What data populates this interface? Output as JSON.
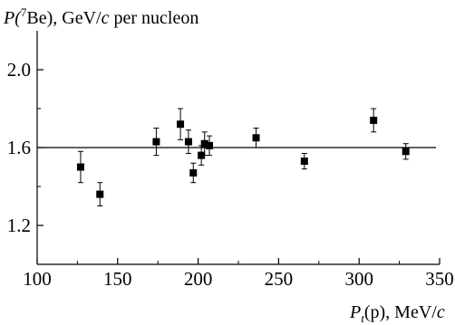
{
  "chart_data": {
    "type": "scatter",
    "ylabel": {
      "prefix": "P(",
      "superscript": "7",
      "element": "Be), GeV/",
      "unit_italic": "c",
      "suffix": " per nucleon"
    },
    "xlabel": {
      "main": "P",
      "subscript": "t",
      "paren": "(p), MeV/",
      "unit_italic": "c"
    },
    "xlim": [
      100,
      350
    ],
    "ylim": [
      1.0,
      2.2
    ],
    "x_ticks": [
      100,
      150,
      200,
      250,
      300,
      350
    ],
    "y_ticks": [
      1.2,
      1.6,
      2.0
    ],
    "x_tick_labels": [
      "100",
      "150",
      "200",
      "250",
      "300",
      "350"
    ],
    "y_tick_labels": [
      "1.2",
      "1.6",
      "2.0"
    ],
    "fit_line_y": 1.6,
    "marker": "filled-square",
    "points": [
      {
        "x": 127,
        "y": 1.5,
        "yerr": 0.08
      },
      {
        "x": 139,
        "y": 1.36,
        "yerr": 0.06
      },
      {
        "x": 174,
        "y": 1.63,
        "yerr": 0.07
      },
      {
        "x": 189,
        "y": 1.72,
        "yerr": 0.08
      },
      {
        "x": 194,
        "y": 1.63,
        "yerr": 0.06
      },
      {
        "x": 197,
        "y": 1.47,
        "yerr": 0.05
      },
      {
        "x": 202,
        "y": 1.56,
        "yerr": 0.05
      },
      {
        "x": 204,
        "y": 1.62,
        "yerr": 0.06
      },
      {
        "x": 207,
        "y": 1.61,
        "yerr": 0.05
      },
      {
        "x": 236,
        "y": 1.65,
        "yerr": 0.05
      },
      {
        "x": 266,
        "y": 1.53,
        "yerr": 0.04
      },
      {
        "x": 309,
        "y": 1.74,
        "yerr": 0.06
      },
      {
        "x": 329,
        "y": 1.58,
        "yerr": 0.04
      }
    ],
    "grid": false
  }
}
